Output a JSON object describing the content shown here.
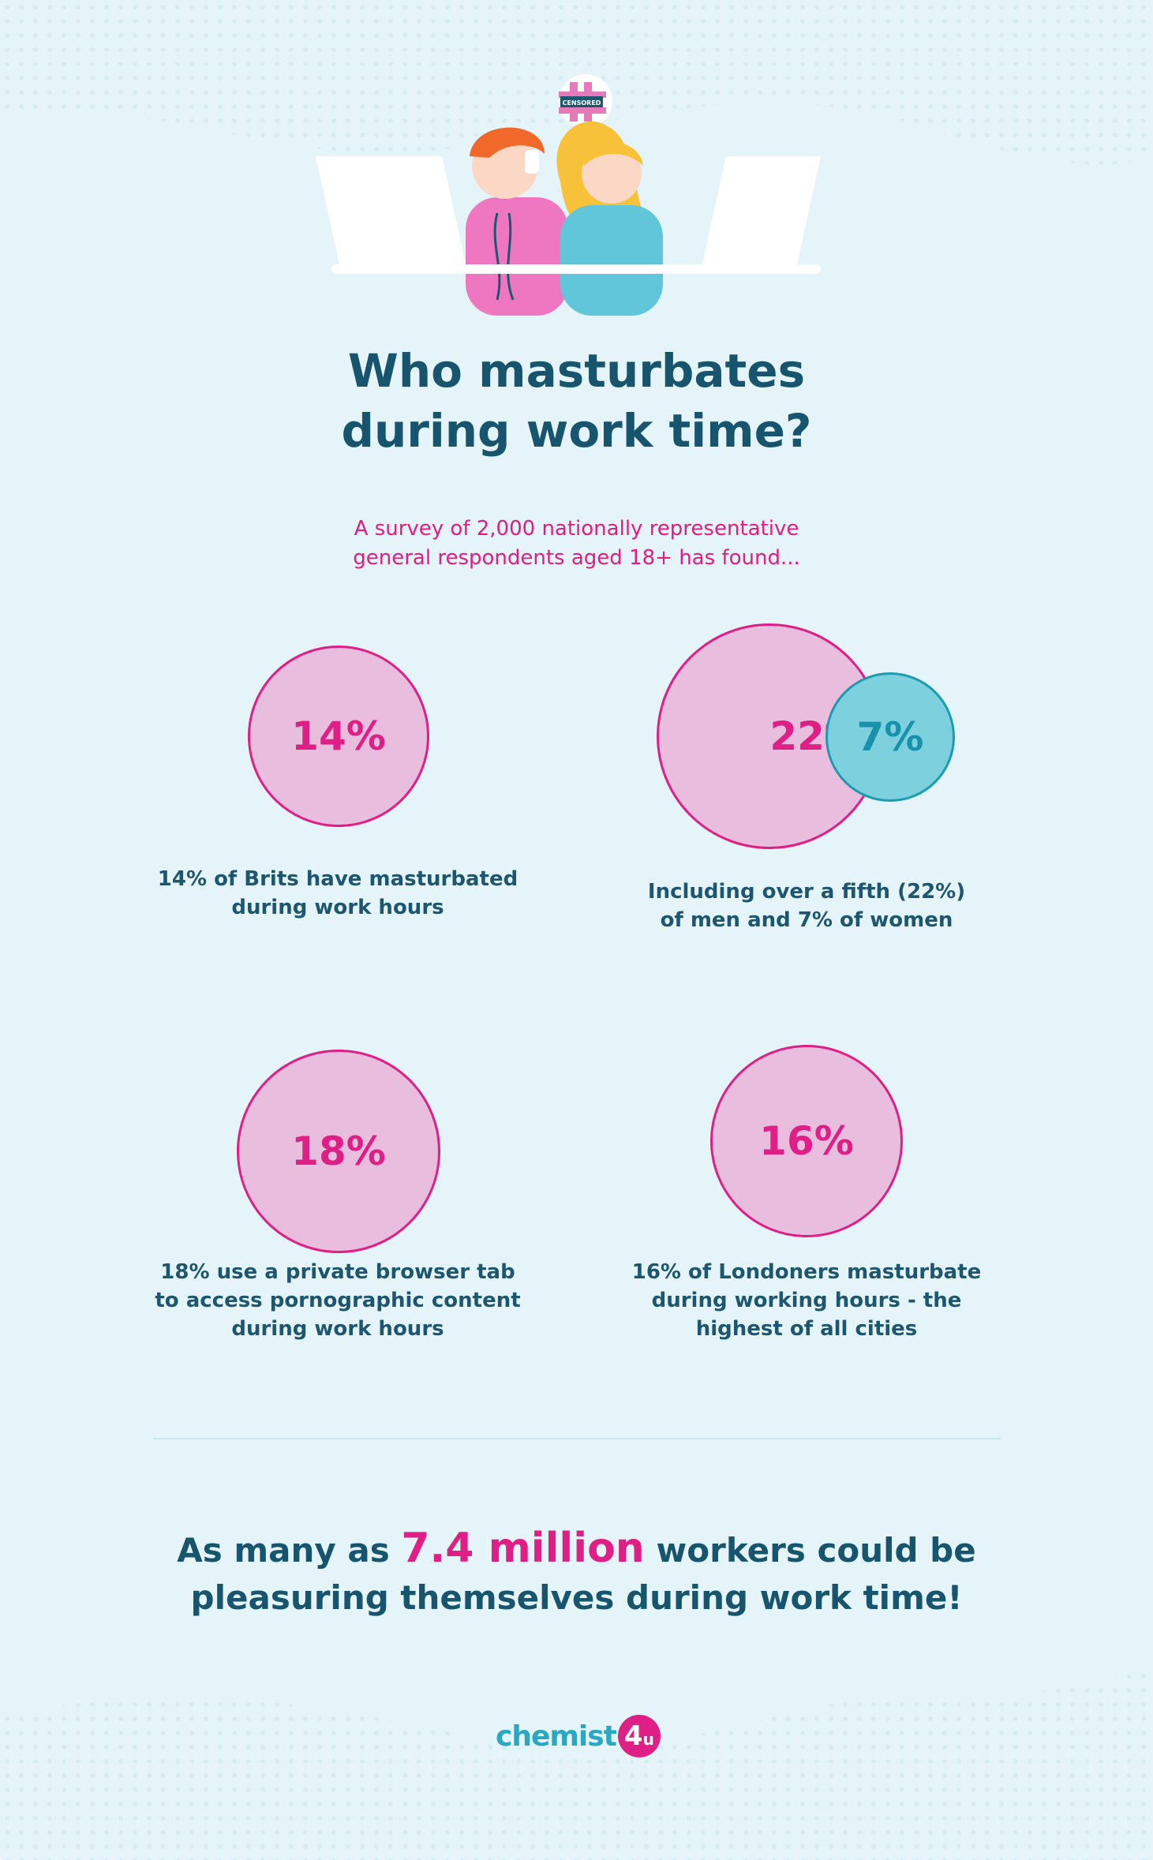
{
  "title_line1": "Who masturbates",
  "title_line2": "during work time?",
  "subtitle_line1": "A survey of 2,000 nationally representative",
  "subtitle_line2": "general respondents aged 18+ has found...",
  "illustration": {
    "bubble_text": "CENSORED"
  },
  "stats": {
    "brits": {
      "value": "14%",
      "text_line1": "14% of Brits have masturbated",
      "text_line2": "during work hours"
    },
    "men": {
      "value": "22%"
    },
    "women": {
      "value": "7%"
    },
    "gender": {
      "text_line1": "Including over a fifth (22%)",
      "text_line2": "of men and 7% of women"
    },
    "browser": {
      "value": "18%",
      "text_line1": "18% use a private browser tab",
      "text_line2": "to access pornographic content",
      "text_line3": "during work hours"
    },
    "london": {
      "value": "16%",
      "text_line1": "16% of Londoners masturbate",
      "text_line2": "during working hours - the",
      "text_line3": "highest of all cities"
    }
  },
  "headline": {
    "prefix": "As many as",
    "highlight": "7.4 million",
    "suffix": "workers could be",
    "line2": "pleasuring themselves during work time!"
  },
  "logo": {
    "text": "chemist",
    "badge_number": "4",
    "badge_letter": "u"
  },
  "colors": {
    "background": "#e5f4f8",
    "navy": "#17546d",
    "pink": "#e01f86",
    "circle_pink": "#e9bddd",
    "circle_blue": "#7dd0de"
  }
}
